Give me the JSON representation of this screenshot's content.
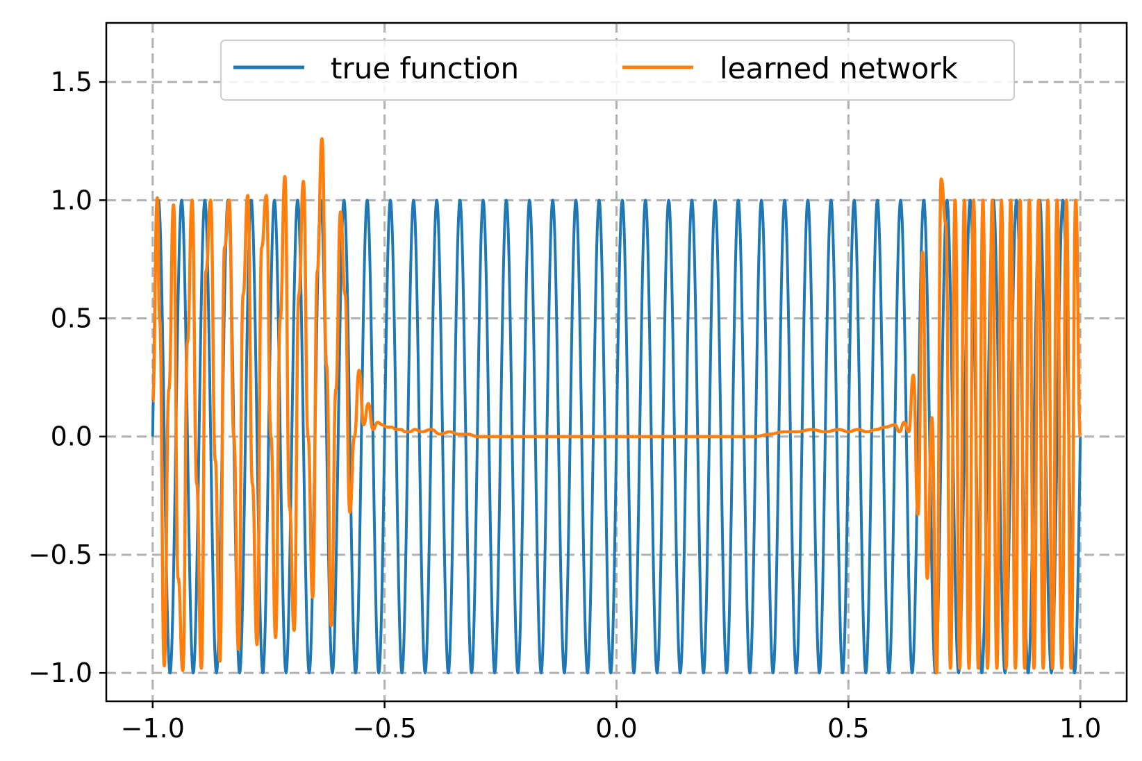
{
  "chart_data": {
    "type": "line",
    "title": "",
    "xlabel": "",
    "ylabel": "",
    "xlim": [
      -1.1,
      1.1
    ],
    "ylim": [
      -1.12,
      1.75
    ],
    "grid": true,
    "grid_style": "dashed",
    "legend_placement": "upper center",
    "legend_columns": 2,
    "x_ticks": [
      -1.0,
      -0.5,
      0.0,
      0.5,
      1.0
    ],
    "x_tick_labels": [
      "−1.0",
      "−0.5",
      "0.0",
      "0.5",
      "1.0"
    ],
    "y_ticks": [
      -1.0,
      -0.5,
      0.0,
      0.5,
      1.0,
      1.5
    ],
    "y_tick_labels": [
      "−1.0",
      "−0.5",
      "0.0",
      "0.5",
      "1.0",
      "1.5"
    ],
    "series": [
      {
        "name": "true function",
        "color": "#1f77b4",
        "function": "sin(2*pi*40*(x+1))",
        "x_range": [
          -1.0,
          1.0
        ],
        "cycles": 40,
        "amplitude": 1.0
      },
      {
        "name": "learned network",
        "color": "#ff7f0e",
        "x": [
          -1.0,
          -0.99,
          -0.985,
          -0.975,
          -0.965,
          -0.955,
          -0.945,
          -0.935,
          -0.925,
          -0.915,
          -0.905,
          -0.895,
          -0.885,
          -0.875,
          -0.865,
          -0.855,
          -0.845,
          -0.835,
          -0.825,
          -0.815,
          -0.805,
          -0.795,
          -0.785,
          -0.775,
          -0.765,
          -0.755,
          -0.745,
          -0.735,
          -0.725,
          -0.715,
          -0.705,
          -0.695,
          -0.685,
          -0.675,
          -0.665,
          -0.655,
          -0.645,
          -0.635,
          -0.625,
          -0.615,
          -0.605,
          -0.595,
          -0.585,
          -0.575,
          -0.565,
          -0.555,
          -0.545,
          -0.535,
          -0.525,
          -0.515,
          -0.505,
          -0.495,
          -0.485,
          -0.475,
          -0.465,
          -0.455,
          -0.445,
          -0.435,
          -0.42,
          -0.4,
          -0.38,
          -0.36,
          -0.34,
          -0.32,
          -0.3,
          -0.28,
          -0.26,
          -0.24,
          -0.22,
          -0.2,
          -0.15,
          -0.1,
          -0.05,
          0.0,
          0.05,
          0.1,
          0.15,
          0.2,
          0.25,
          0.3,
          0.33,
          0.36,
          0.39,
          0.42,
          0.45,
          0.48,
          0.5,
          0.52,
          0.54,
          0.56,
          0.58,
          0.6,
          0.61,
          0.62,
          0.63,
          0.64,
          0.65,
          0.66,
          0.67,
          0.68,
          0.69,
          0.7,
          0.71,
          0.72,
          0.73,
          0.74,
          0.75,
          0.76,
          0.77,
          0.78,
          0.79,
          0.8,
          0.81,
          0.82,
          0.83,
          0.84,
          0.85,
          0.86,
          0.87,
          0.88,
          0.89,
          0.9,
          0.91,
          0.92,
          0.93,
          0.94,
          0.95,
          0.96,
          0.97,
          0.98,
          0.99,
          1.0
        ],
        "y": [
          0.15,
          1.01,
          0.5,
          -0.97,
          0.2,
          0.98,
          -0.6,
          -0.99,
          0.4,
          1.0,
          -0.2,
          -0.98,
          0.7,
          1.0,
          -0.1,
          -0.95,
          0.8,
          1.0,
          0.0,
          -0.9,
          0.6,
          1.02,
          -0.2,
          -0.88,
          0.8,
          1.02,
          0.0,
          -0.85,
          0.5,
          1.1,
          -0.3,
          -0.82,
          0.6,
          1.08,
          0.0,
          -0.68,
          0.7,
          1.26,
          0.3,
          -0.8,
          0.2,
          0.95,
          0.6,
          -0.32,
          0.0,
          0.28,
          0.05,
          0.14,
          0.03,
          0.06,
          0.05,
          0.04,
          0.04,
          0.03,
          0.03,
          0.02,
          0.02,
          0.03,
          0.02,
          0.03,
          0.01,
          0.02,
          0.01,
          0.01,
          0.0,
          0.0,
          0.0,
          0.0,
          0.0,
          0.0,
          0.0,
          0.0,
          0.0,
          0.0,
          0.0,
          0.0,
          0.0,
          0.0,
          0.0,
          0.0,
          0.01,
          0.02,
          0.02,
          0.03,
          0.02,
          0.03,
          0.02,
          0.03,
          0.02,
          0.03,
          0.04,
          0.05,
          0.02,
          0.06,
          0.02,
          0.26,
          -0.33,
          0.78,
          -0.6,
          0.08,
          -1.0,
          1.09,
          0.9,
          -0.98,
          1.0,
          -0.98,
          1.0,
          -0.98,
          1.0,
          -0.98,
          1.0,
          -0.98,
          1.0,
          -0.98,
          1.0,
          -0.98,
          1.0,
          -0.98,
          1.0,
          -0.98,
          1.0,
          -0.98,
          1.0,
          -0.98,
          1.0,
          -0.98,
          1.0,
          -0.98,
          1.0,
          -0.98,
          1.0,
          0.0
        ],
        "note": "sampled envelope points"
      }
    ]
  }
}
